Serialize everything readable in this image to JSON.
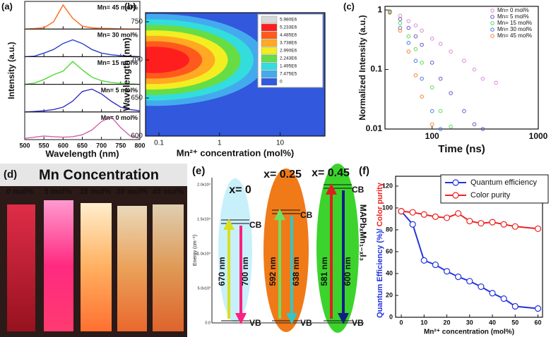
{
  "chart_data": [
    {
      "type": "ridgeline",
      "panel_label": "(a)",
      "x_label": "Wavelength (nm)",
      "y_label": "Intensity (a.u.)",
      "x": [
        500,
        525,
        550,
        575,
        600,
        625,
        650,
        675,
        700,
        725,
        750,
        775,
        800
      ],
      "xlim": [
        500,
        800
      ],
      "xticks": [
        500,
        550,
        600,
        650,
        700,
        750,
        800
      ],
      "ylim": [
        0,
        1.15
      ],
      "series": [
        {
          "name": "Mn= 45 mol%",
          "color": "#ff6a1a",
          "values": [
            0,
            0.02,
            0.05,
            0.3,
            1.0,
            0.45,
            0.12,
            0.05,
            0.03,
            0.02,
            0.01,
            0,
            0
          ]
        },
        {
          "name": "Mn= 30 mol%",
          "color": "#2a3fd0",
          "values": [
            0,
            0.02,
            0.15,
            0.3,
            0.55,
            0.7,
            0.55,
            0.3,
            0.15,
            0.08,
            0.04,
            0.02,
            0
          ]
        },
        {
          "name": "Mn= 15 mol%",
          "color": "#4fd832",
          "values": [
            0,
            0.05,
            0.2,
            0.4,
            0.55,
            0.95,
            0.6,
            0.3,
            0.15,
            0.08,
            0.04,
            0.02,
            0
          ]
        },
        {
          "name": "Mn= 5 mol%",
          "color": "#3030c8",
          "values": [
            0,
            0.02,
            0.05,
            0.1,
            0.2,
            0.45,
            0.85,
            0.95,
            0.75,
            0.45,
            0.2,
            0.1,
            0.05
          ]
        },
        {
          "name": "Mn= 0 mol%",
          "color": "#d060b0",
          "values": [
            0.05,
            0.1,
            0.15,
            0.12,
            0.1,
            0.12,
            0.2,
            0.4,
            0.75,
            0.95,
            0.5,
            0.15,
            0.05
          ]
        }
      ]
    },
    {
      "type": "contour",
      "panel_label": "(b)",
      "x_label": "Mn²⁺ concentration (mol%)",
      "y_label": "Wavelength (nm)",
      "xscale": "log",
      "xlim": [
        0.06,
        55
      ],
      "xticks": [
        0.1,
        1,
        10
      ],
      "ylim": [
        600,
        762
      ],
      "yticks": [
        600,
        650,
        700,
        750
      ],
      "levels": [
        {
          "value": 5980000,
          "label": "5.980E6",
          "color": "#d8d8d8"
        },
        {
          "value": 5233000,
          "label": "5.233E6",
          "color": "#ff1e1e"
        },
        {
          "value": 4485000,
          "label": "4.485E6",
          "color": "#ff5a1e"
        },
        {
          "value": 3738000,
          "label": "3.738E6",
          "color": "#ffaa22"
        },
        {
          "value": 2990000,
          "label": "2.990E6",
          "color": "#f2ee22"
        },
        {
          "value": 2243000,
          "label": "2.243E6",
          "color": "#66dd44"
        },
        {
          "value": 1495000,
          "label": "1.495E6",
          "color": "#33dddd"
        },
        {
          "value": 747500,
          "label": "7.475E5",
          "color": "#44aaee"
        },
        {
          "value": 0,
          "label": "0",
          "color": "#3158dd"
        }
      ]
    },
    {
      "type": "scatter",
      "panel_label": "(c)",
      "x_label": "Time (ns)",
      "y_label": "Normalized Intensity (a.u.)",
      "xscale": "log",
      "yscale": "log",
      "xlim": [
        36,
        1000
      ],
      "xticks": [
        100,
        1000
      ],
      "ylim": [
        0.01,
        1.15
      ],
      "yticks": [
        0.01,
        0.1,
        1
      ],
      "x": [
        40,
        50,
        60,
        70,
        80,
        100,
        120,
        150,
        200,
        250,
        300,
        400
      ],
      "series": [
        {
          "name": "Mn= 0 mol%",
          "color": "#d98ad9",
          "values": [
            0.95,
            0.8,
            0.65,
            0.55,
            0.45,
            0.33,
            0.27,
            0.2,
            0.14,
            0.1,
            0.07,
            0.06
          ]
        },
        {
          "name": "Mn= 5 mol%",
          "color": "#6a55c8",
          "values": [
            0.95,
            0.7,
            0.5,
            0.36,
            0.26,
            0.13,
            0.07,
            0.04,
            0.02,
            0.012,
            0.01,
            null
          ]
        },
        {
          "name": "Mn= 15 mol%",
          "color": "#55dd55",
          "values": [
            0.95,
            0.6,
            0.36,
            0.22,
            0.13,
            0.05,
            0.02,
            0.011,
            null,
            null,
            null,
            null
          ]
        },
        {
          "name": "Mn= 30 mol%",
          "color": "#4a7ae0",
          "values": [
            0.92,
            0.5,
            0.28,
            0.14,
            0.07,
            0.02,
            0.01,
            null,
            null,
            null,
            null,
            null
          ]
        },
        {
          "name": "Mn= 45 mol%",
          "color": "#ff7f2a",
          "values": [
            0.9,
            0.45,
            0.2,
            0.08,
            0.035,
            0.012,
            null,
            null,
            null,
            null,
            null,
            null
          ]
        }
      ]
    },
    {
      "type": "line",
      "panel_label": "(f)",
      "x_label": "Mn²⁺ concentration (mol%)",
      "y_label_parts": [
        "Quantum Efficiency (%)/ ",
        "Color purity"
      ],
      "x": [
        0,
        5,
        10,
        15,
        20,
        25,
        30,
        35,
        40,
        45,
        50,
        60
      ],
      "xlim": [
        -2.5,
        62
      ],
      "xticks": [
        0,
        10,
        20,
        30,
        40,
        50,
        60
      ],
      "ylim": [
        0,
        129
      ],
      "yticks": [
        0,
        20,
        40,
        60,
        80,
        100,
        120
      ],
      "series": [
        {
          "name": "Quantum efficiency",
          "color": "#2233dd",
          "values": [
            97,
            85,
            52,
            48,
            42,
            37,
            33,
            28,
            22,
            17,
            10,
            8
          ]
        },
        {
          "name": "Color purity",
          "color": "#ee2222",
          "values": [
            97,
            96,
            94,
            92,
            91,
            95,
            88,
            86,
            87,
            85,
            83,
            81
          ]
        }
      ]
    }
  ],
  "photo": {
    "panel_label": "(d)",
    "title": "Mn Concentration",
    "labels": [
      "0 mol%",
      "5 mol%",
      "15 mol%",
      "30 mol%",
      "45 mol%"
    ]
  },
  "diagram": {
    "panel_label": "(e)",
    "y_label": "Energy (cm⁻¹)",
    "y_tick_labels": [
      "2.0x10⁴",
      "1.5x10⁴",
      "1.0x10⁴",
      "5.0x10³",
      "0.0"
    ],
    "side_label": "MAPbₓMn₁₋ₓI₃",
    "columns": [
      {
        "label": "x= 0",
        "cb": "CB",
        "vb": "VB",
        "emissions": [
          "670 nm",
          "700 nm"
        ]
      },
      {
        "label": "x= 0.25",
        "cb": "CB",
        "vb": "VB",
        "emissions": [
          "592 nm",
          "638 nm"
        ]
      },
      {
        "label": "x= 0.45",
        "cb": "CB",
        "vb": "VB",
        "emissions": [
          "581 nm",
          "600 nm"
        ]
      }
    ]
  }
}
